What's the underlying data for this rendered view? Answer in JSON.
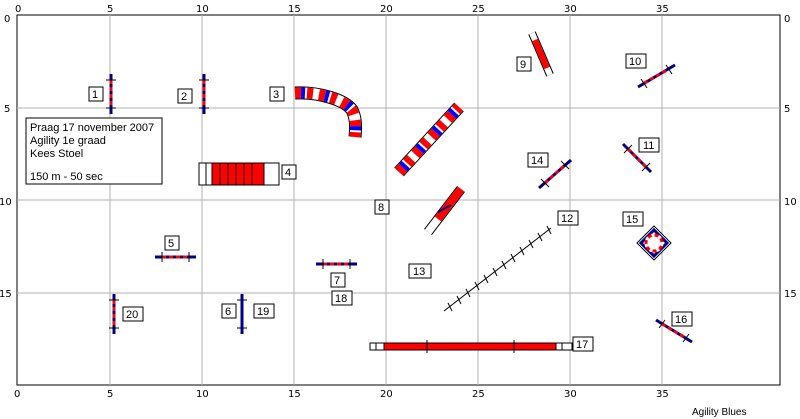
{
  "course": {
    "x_ticks": [
      "0",
      "5",
      "10",
      "15",
      "20",
      "25",
      "30",
      "35"
    ],
    "y_ticks": [
      "0",
      "5",
      "10",
      "15"
    ],
    "bottom_ticks": [
      "0",
      "5",
      "10",
      "15",
      "20",
      "25",
      "30",
      "35"
    ],
    "info_lines": [
      "Praag 17 november 2007",
      "Agility 1e graad",
      "Kees Stoel",
      "",
      "150 m - 50 sec"
    ],
    "footer": "Agility Blues",
    "colors": {
      "red": "#ff0000",
      "blue": "#0000cc",
      "navy": "#000080",
      "grid": "#b0b0b0",
      "outline": "#000000"
    },
    "labels": [
      "1",
      "2",
      "3",
      "4",
      "5",
      "6",
      "7",
      "8",
      "9",
      "10",
      "11",
      "12",
      "13",
      "14",
      "15",
      "16",
      "17",
      "18",
      "19",
      "20"
    ],
    "obstacles": [
      {
        "type": "jump",
        "name": "jump-1"
      },
      {
        "type": "jump",
        "name": "jump-2"
      },
      {
        "type": "tunnel",
        "name": "curved-tunnel-3"
      },
      {
        "type": "collapsed-tunnel",
        "name": "collapsed-tunnel-4"
      },
      {
        "type": "jump",
        "name": "jump-5"
      },
      {
        "type": "jump",
        "name": "jump-6"
      },
      {
        "type": "jump",
        "name": "jump-7"
      },
      {
        "type": "tunnel",
        "name": "straight-tunnel-8"
      },
      {
        "type": "seesaw",
        "name": "seesaw-9"
      },
      {
        "type": "jump",
        "name": "jump-10"
      },
      {
        "type": "jump",
        "name": "jump-11"
      },
      {
        "type": "weave-poles",
        "name": "weave-poles-12"
      },
      {
        "type": "tire",
        "name": "tire-15"
      },
      {
        "type": "jump",
        "name": "jump-14"
      },
      {
        "type": "jump",
        "name": "jump-16"
      },
      {
        "type": "dog-walk",
        "name": "dog-walk-17"
      },
      {
        "type": "jump",
        "name": "jump-20"
      },
      {
        "type": "jump",
        "name": "jump-19"
      }
    ]
  }
}
